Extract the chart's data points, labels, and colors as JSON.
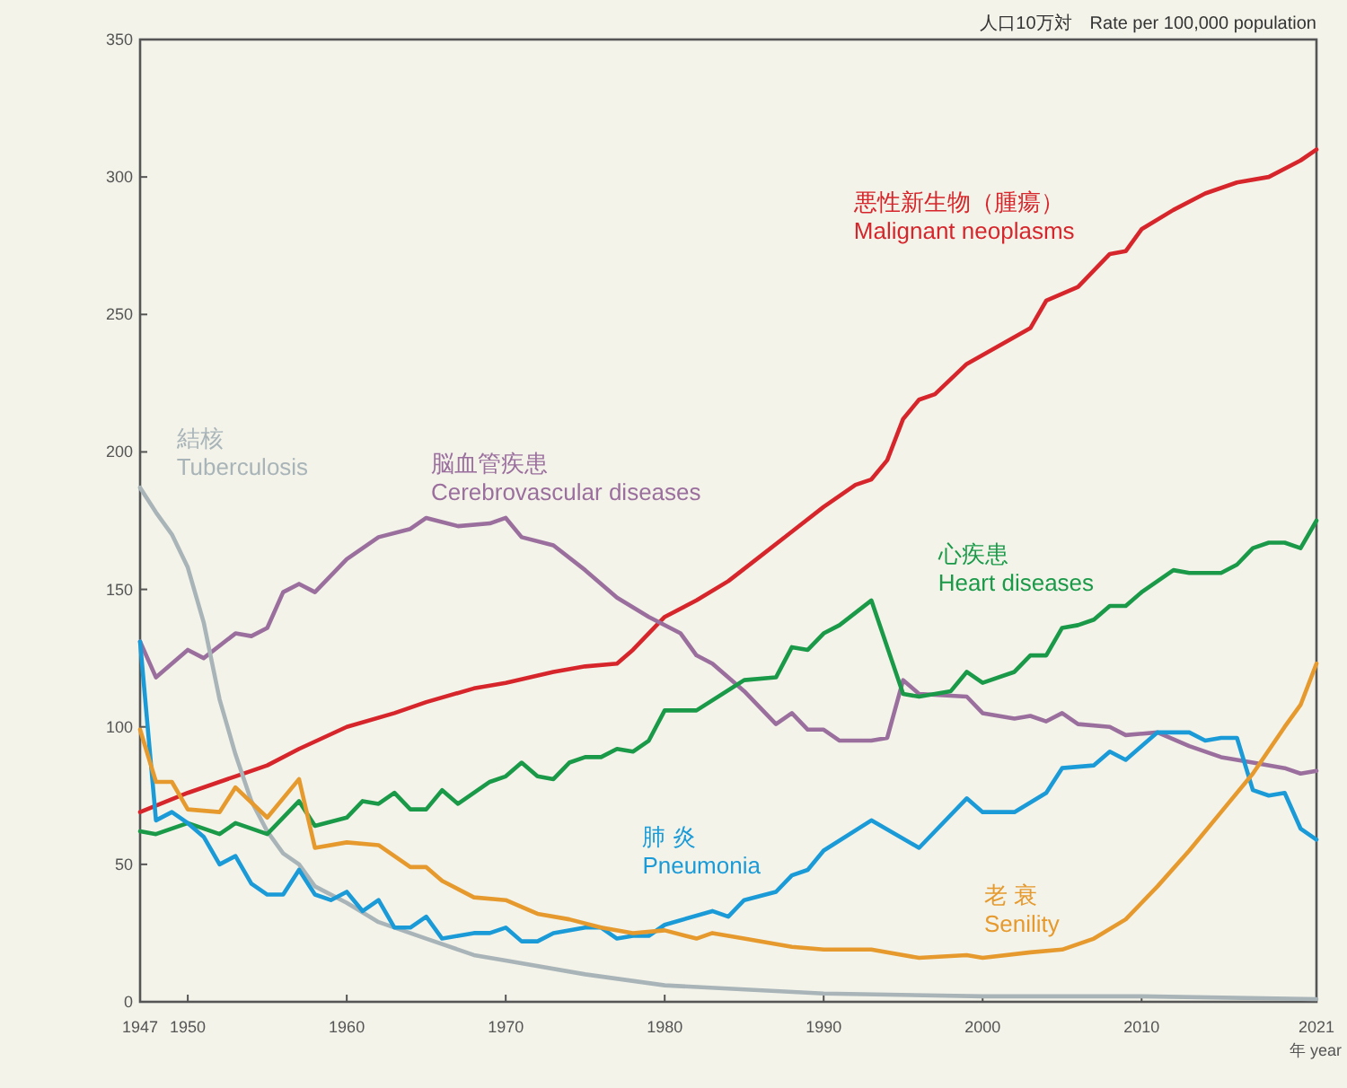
{
  "chart_data": {
    "type": "line",
    "ylabel": "人口10万対　Rate per 100,000 population",
    "xlabel": "年 year",
    "xlim": [
      1947,
      2021
    ],
    "xticks": [
      1947,
      1950,
      1960,
      1970,
      1980,
      1990,
      2000,
      2010,
      2021
    ],
    "ylim": [
      0,
      350
    ],
    "yticks": [
      0,
      50,
      100,
      150,
      200,
      250,
      300,
      350
    ],
    "series": [
      {
        "name": "悪性新生物（腫瘍）\nMalignant neoplasms",
        "color": "#d7262b",
        "x": [
          1947,
          1950,
          1953,
          1955,
          1957,
          1960,
          1963,
          1965,
          1968,
          1970,
          1973,
          1975,
          1977,
          1978,
          1980,
          1982,
          1984,
          1986,
          1988,
          1990,
          1992,
          1993,
          1994,
          1995,
          1996,
          1997,
          1999,
          2003,
          2004,
          2006,
          2008,
          2009,
          2010,
          2012,
          2014,
          2016,
          2018,
          2020,
          2021
        ],
        "values": [
          69,
          76,
          82,
          86,
          92,
          100,
          105,
          109,
          114,
          116,
          120,
          122,
          123,
          128,
          140,
          146,
          153,
          162,
          171,
          180,
          188,
          190,
          197,
          212,
          219,
          221,
          232,
          245,
          255,
          260,
          272,
          273,
          281,
          288,
          294,
          298,
          300,
          306,
          310
        ]
      },
      {
        "name": "脳血管疾患\nCerebrovascular diseases",
        "color": "#9b6f9d",
        "x": [
          1947,
          1948,
          1950,
          1951,
          1953,
          1954,
          1955,
          1956,
          1957,
          1958,
          1960,
          1962,
          1964,
          1965,
          1967,
          1969,
          1970,
          1971,
          1973,
          1975,
          1977,
          1979,
          1981,
          1982,
          1983,
          1985,
          1987,
          1988,
          1989,
          1990,
          1991,
          1993,
          1994,
          1995,
          1996,
          1999,
          2000,
          2002,
          2003,
          2004,
          2005,
          2006,
          2008,
          2009,
          2011,
          2013,
          2015,
          2017,
          2019,
          2020,
          2021
        ],
        "values": [
          131,
          118,
          128,
          125,
          134,
          133,
          136,
          149,
          152,
          149,
          161,
          169,
          172,
          176,
          173,
          174,
          176,
          169,
          166,
          157,
          147,
          140,
          134,
          126,
          123,
          113,
          101,
          105,
          99,
          99,
          95,
          95,
          96,
          117,
          112,
          111,
          105,
          103,
          104,
          102,
          105,
          101,
          100,
          97,
          98,
          93,
          89,
          87,
          85,
          83,
          84
        ]
      },
      {
        "name": "結核\nTuberculosis",
        "color": "#a8b4b8",
        "x": [
          1947,
          1948,
          1949,
          1950,
          1951,
          1952,
          1953,
          1954,
          1955,
          1956,
          1957,
          1958,
          1960,
          1962,
          1965,
          1968,
          1970,
          1975,
          1980,
          1990,
          2000,
          2010,
          2021
        ],
        "values": [
          187,
          178,
          170,
          158,
          138,
          110,
          90,
          73,
          62,
          54,
          50,
          42,
          36,
          29,
          23,
          17,
          15,
          10,
          6,
          3,
          2,
          2,
          1
        ]
      },
      {
        "name": "心疾患\nHeart diseases",
        "color": "#1a9a48",
        "x": [
          1947,
          1948,
          1950,
          1952,
          1953,
          1955,
          1957,
          1958,
          1960,
          1961,
          1962,
          1963,
          1964,
          1965,
          1966,
          1967,
          1969,
          1970,
          1971,
          1972,
          1973,
          1974,
          1975,
          1976,
          1977,
          1978,
          1979,
          1980,
          1982,
          1985,
          1987,
          1988,
          1989,
          1990,
          1991,
          1993,
          1995,
          1996,
          1998,
          1999,
          2000,
          2002,
          2003,
          2004,
          2005,
          2006,
          2007,
          2008,
          2009,
          2010,
          2011,
          2012,
          2013,
          2015,
          2016,
          2017,
          2018,
          2019,
          2020,
          2021
        ],
        "values": [
          62,
          61,
          65,
          61,
          65,
          61,
          73,
          64,
          67,
          73,
          72,
          76,
          70,
          70,
          77,
          72,
          80,
          82,
          87,
          82,
          81,
          87,
          89,
          89,
          92,
          91,
          95,
          106,
          106,
          117,
          118,
          129,
          128,
          134,
          137,
          146,
          112,
          111,
          113,
          120,
          116,
          120,
          126,
          126,
          136,
          137,
          139,
          144,
          144,
          149,
          153,
          157,
          156,
          156,
          159,
          165,
          167,
          167,
          165,
          175
        ]
      },
      {
        "name": "肺 炎\nPneumonia",
        "color": "#1a9bd7",
        "x": [
          1947,
          1948,
          1949,
          1950,
          1951,
          1952,
          1953,
          1954,
          1955,
          1956,
          1957,
          1958,
          1959,
          1960,
          1961,
          1962,
          1963,
          1964,
          1965,
          1966,
          1967,
          1968,
          1969,
          1970,
          1971,
          1972,
          1973,
          1975,
          1976,
          1977,
          1978,
          1979,
          1980,
          1983,
          1984,
          1985,
          1987,
          1988,
          1989,
          1990,
          1993,
          1996,
          1999,
          2000,
          2002,
          2004,
          2005,
          2007,
          2008,
          2009,
          2011,
          2013,
          2014,
          2015,
          2016,
          2017,
          2018,
          2019,
          2020,
          2021
        ],
        "values": [
          131,
          66,
          69,
          65,
          60,
          50,
          53,
          43,
          39,
          39,
          48,
          39,
          37,
          40,
          33,
          37,
          27,
          27,
          31,
          23,
          24,
          25,
          25,
          27,
          22,
          22,
          25,
          27,
          27,
          23,
          24,
          24,
          28,
          33,
          31,
          37,
          40,
          46,
          48,
          55,
          66,
          56,
          74,
          69,
          69,
          76,
          85,
          86,
          91,
          88,
          98,
          98,
          95,
          96,
          96,
          77,
          75,
          76,
          63,
          59
        ]
      },
      {
        "name": "老 衰\nSenility",
        "color": "#e69a2e",
        "x": [
          1947,
          1948,
          1949,
          1950,
          1952,
          1953,
          1955,
          1957,
          1958,
          1960,
          1962,
          1963,
          1964,
          1965,
          1966,
          1968,
          1970,
          1972,
          1974,
          1976,
          1978,
          1980,
          1982,
          1983,
          1985,
          1988,
          1990,
          1993,
          1996,
          1999,
          2000,
          2003,
          2005,
          2007,
          2009,
          2011,
          2013,
          2015,
          2017,
          2019,
          2020,
          2021
        ],
        "values": [
          99,
          80,
          80,
          70,
          69,
          78,
          67,
          81,
          56,
          58,
          57,
          53,
          49,
          49,
          44,
          38,
          37,
          32,
          30,
          27,
          25,
          26,
          23,
          25,
          23,
          20,
          19,
          19,
          16,
          17,
          16,
          18,
          19,
          23,
          30,
          42,
          55,
          69,
          83,
          100,
          108,
          123
        ]
      }
    ]
  }
}
